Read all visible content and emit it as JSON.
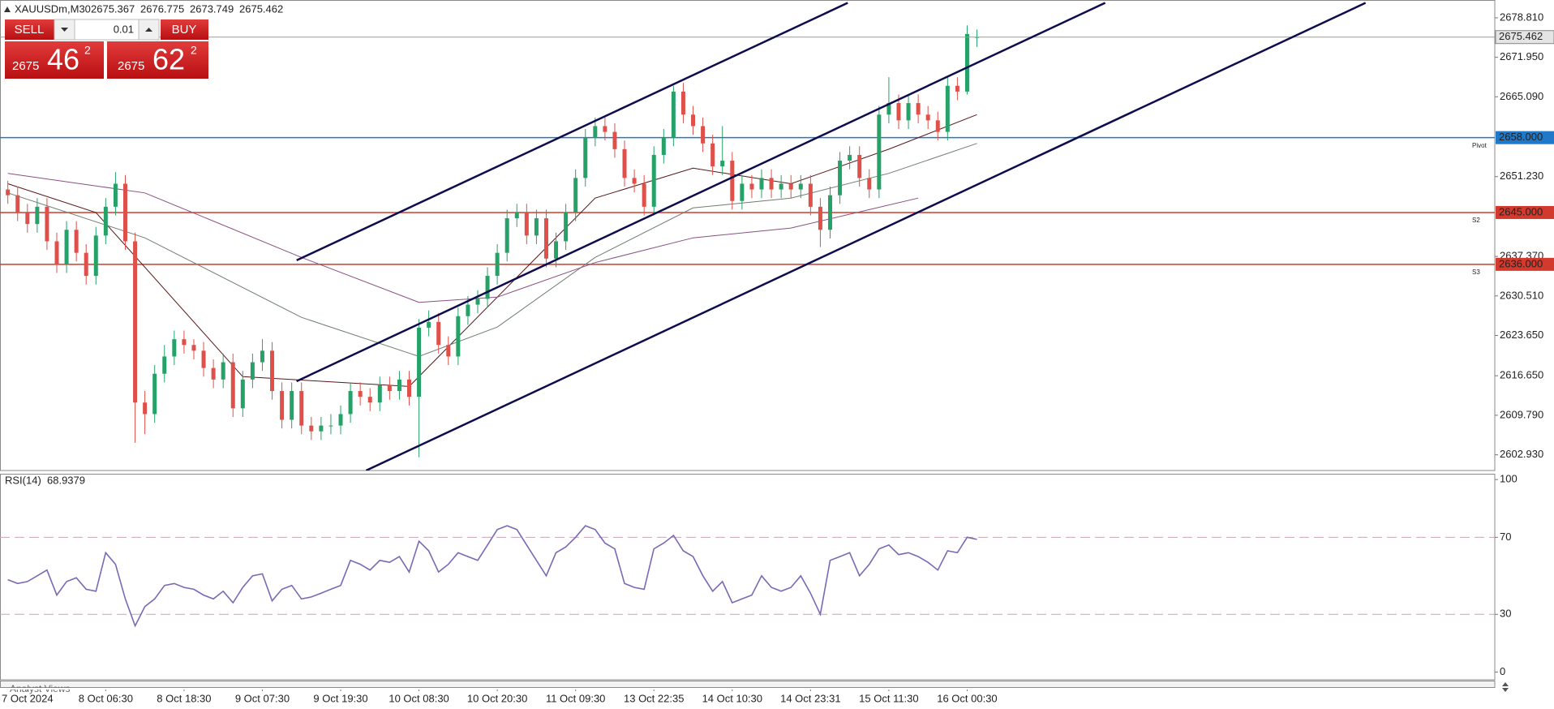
{
  "chart_data": [
    {
      "type": "candlestick",
      "title": "XAUUSDm,M30",
      "xlim": [
        -0.8,
        151.9
      ],
      "ylim": [
        2600.2,
        2681.9
      ],
      "xticks": [
        {
          "value": 2,
          "label": "7 Oct 2024"
        },
        {
          "value": 10,
          "label": "8 Oct 06:30"
        },
        {
          "value": 18,
          "label": "8 Oct 18:30"
        },
        {
          "value": 26,
          "label": "9 Oct 07:30"
        },
        {
          "value": 34,
          "label": "9 Oct 19:30"
        },
        {
          "value": 42,
          "label": "10 Oct 08:30"
        },
        {
          "value": 50,
          "label": "10 Oct 20:30"
        },
        {
          "value": 58,
          "label": "11 Oct 09:30"
        },
        {
          "value": 66,
          "label": "13 Oct 22:35"
        },
        {
          "value": 74,
          "label": "14 Oct 10:30"
        },
        {
          "value": 82,
          "label": "14 Oct 23:31"
        },
        {
          "value": 90,
          "label": "15 Oct 11:30"
        },
        {
          "value": 98,
          "label": "16 Oct 00:30"
        }
      ],
      "yticks": [
        {
          "value": 2602.93,
          "label": "2602.930"
        },
        {
          "value": 2609.79,
          "label": "2609.790"
        },
        {
          "value": 2616.65,
          "label": "2616.650"
        },
        {
          "value": 2623.65,
          "label": "2623.650"
        },
        {
          "value": 2630.51,
          "label": "2630.510"
        },
        {
          "value": 2637.37,
          "label": "2637.370"
        },
        {
          "value": 2651.23,
          "label": "2651.230"
        },
        {
          "value": 2665.09,
          "label": "2665.090"
        },
        {
          "value": 2671.95,
          "label": "2671.950"
        },
        {
          "value": 2678.81,
          "label": "2678.810"
        }
      ],
      "up_color": "#26a269",
      "down_color": "#e0504a",
      "open": [
        2649,
        2648,
        2645,
        2643,
        2646,
        2640,
        2636,
        2642,
        2638,
        2634,
        2641,
        2646,
        2650,
        2640,
        2612,
        2610,
        2617,
        2620,
        2623,
        2622,
        2621,
        2618,
        2616,
        2619,
        2611,
        2616,
        2619,
        2621,
        2614,
        2609,
        2614,
        2608,
        2607,
        2608,
        2608,
        2610,
        2614,
        2613,
        2612,
        2615,
        2614,
        2616,
        2613,
        2625,
        2626,
        2622,
        2620,
        2627,
        2629,
        2630,
        2634,
        2638,
        2644,
        2645,
        2641,
        2644,
        2637,
        2640,
        2645,
        2651,
        2658,
        2660,
        2659,
        2656,
        2651,
        2650,
        2646,
        2655,
        2658,
        2666,
        2662,
        2660,
        2657,
        2653,
        2654,
        2647,
        2650,
        2649,
        2651,
        2649,
        2650,
        2649,
        2650,
        2646,
        2642,
        2648,
        2654,
        2655,
        2651,
        2649,
        2662,
        2664,
        2661,
        2664,
        2662,
        2661,
        2659,
        2667,
        2666,
        2675.367
      ],
      "high": [
        2650.5,
        2649.5,
        2646.5,
        2647.5,
        2647.5,
        2641.5,
        2643.5,
        2643.5,
        2639.5,
        2642.5,
        2647.5,
        2652,
        2651.5,
        2641.5,
        2614,
        2618.5,
        2622,
        2624.5,
        2624.5,
        2623,
        2622.5,
        2619.5,
        2620.5,
        2620.5,
        2617.5,
        2620.5,
        2623,
        2622.5,
        2615.5,
        2615.5,
        2615.5,
        2609.5,
        2609.5,
        2610,
        2611.5,
        2615.5,
        2615.5,
        2614.5,
        2616.5,
        2616.5,
        2617.5,
        2617.5,
        2626.5,
        2628,
        2627.5,
        2623.5,
        2628.5,
        2630.5,
        2631.5,
        2635.5,
        2639.5,
        2645.5,
        2646.5,
        2646.5,
        2645.5,
        2645.5,
        2641.5,
        2646.5,
        2652.5,
        2659.5,
        2661.5,
        2661.5,
        2660.5,
        2657.5,
        2652.5,
        2651.5,
        2656.5,
        2659.5,
        2667,
        2667.5,
        2663.5,
        2661.5,
        2658.5,
        2660,
        2655.5,
        2651.5,
        2651.5,
        2652.5,
        2652.5,
        2651.5,
        2651.5,
        2651.5,
        2651.5,
        2647.5,
        2649.5,
        2655.5,
        2656.5,
        2656.5,
        2652.5,
        2663.5,
        2668.5,
        2665.5,
        2665.5,
        2665.5,
        2663.5,
        2662.5,
        2668.5,
        2668.5,
        2677.5,
        2676.775
      ],
      "low": [
        2646.5,
        2643.5,
        2641.5,
        2641.5,
        2638.5,
        2634.5,
        2634.5,
        2636.5,
        2632.5,
        2632.5,
        2639.5,
        2644.5,
        2638.5,
        2605,
        2606.5,
        2608.5,
        2615.5,
        2618.5,
        2620.5,
        2619.5,
        2616.5,
        2614.5,
        2614.5,
        2609.5,
        2609.5,
        2614.5,
        2617.5,
        2612.5,
        2607.5,
        2607.5,
        2606.5,
        2605.5,
        2605.5,
        2606.5,
        2606.5,
        2608.5,
        2611.5,
        2610.5,
        2610.5,
        2612.5,
        2612.5,
        2611.5,
        2602.5,
        2623.5,
        2620.5,
        2618.5,
        2618.5,
        2625.5,
        2627.5,
        2628.5,
        2632.5,
        2636.5,
        2642.5,
        2639.5,
        2639.5,
        2635.5,
        2635.5,
        2638.5,
        2643.5,
        2649.5,
        2656.5,
        2657.5,
        2654.5,
        2649.5,
        2648.5,
        2644.5,
        2644.5,
        2653.5,
        2656.5,
        2660.5,
        2658.5,
        2655.5,
        2651.5,
        2651.5,
        2645.5,
        2645.5,
        2647.5,
        2647.5,
        2647.5,
        2647.5,
        2647.5,
        2647.5,
        2644.5,
        2639,
        2640.5,
        2646.5,
        2652.5,
        2649.5,
        2647.5,
        2647.5,
        2660.5,
        2659.5,
        2659.5,
        2660.5,
        2659.5,
        2657.5,
        2657.5,
        2664.5,
        2665.5,
        2673.749
      ],
      "close": [
        2648,
        2645,
        2643,
        2646,
        2640,
        2636,
        2642,
        2638,
        2634,
        2641,
        2646,
        2650,
        2640,
        2612,
        2610,
        2617,
        2620,
        2623,
        2622,
        2621,
        2618,
        2616,
        2619,
        2611,
        2616,
        2619,
        2621,
        2614,
        2609,
        2614,
        2608,
        2607,
        2608,
        2608,
        2610,
        2614,
        2613,
        2612,
        2615,
        2614,
        2616,
        2613,
        2625,
        2626,
        2622,
        2620,
        2627,
        2629,
        2630,
        2634,
        2638,
        2644,
        2645,
        2641,
        2644,
        2637,
        2640,
        2645,
        2651,
        2658,
        2660,
        2659,
        2656,
        2651,
        2650,
        2646,
        2655,
        2658,
        2666,
        2662,
        2660,
        2657,
        2653,
        2654,
        2647,
        2650,
        2649,
        2651,
        2649,
        2650,
        2649,
        2650,
        2646,
        2642,
        2648,
        2654,
        2655,
        2651,
        2649,
        2662,
        2664,
        2661,
        2664,
        2662,
        2661,
        2659,
        2667,
        2666,
        2676,
        2675.462
      ],
      "current_color": "#9a9a9a",
      "moving_averages": [
        {
          "color": "#5a1616",
          "x": [
            0,
            9,
            24,
            41,
            50,
            60,
            70,
            80,
            90,
            99
          ],
          "values": [
            2650,
            2645,
            2616.5,
            2614.8,
            2630.3,
            2647.5,
            2652.7,
            2650,
            2656,
            2662
          ]
        },
        {
          "color": "#6f7d6f",
          "x": [
            0,
            14,
            30,
            42,
            50,
            60,
            70,
            80,
            90,
            99
          ],
          "values": [
            2648.4,
            2640.6,
            2626.8,
            2620,
            2625.1,
            2637.2,
            2645.8,
            2647.5,
            2651.8,
            2657
          ]
        },
        {
          "color": "#8a4f82",
          "x": [
            0,
            14,
            30,
            42,
            50,
            60,
            70,
            80,
            93
          ],
          "values": [
            2651.8,
            2648.4,
            2637.2,
            2629.4,
            2630.3,
            2636.3,
            2640.6,
            2642.3,
            2647.5
          ]
        }
      ],
      "trendline_color": "#0d0d4d",
      "trendlines": [
        {
          "x": [
            29.5,
            85.8
          ],
          "values": [
            2636.7,
            2681.4
          ]
        },
        {
          "x": [
            29.5,
            112.1
          ],
          "values": [
            2615.7,
            2681.4
          ]
        },
        {
          "x": [
            36.6,
            138.7
          ],
          "values": [
            2600.2,
            2681.4
          ]
        }
      ],
      "levels": [
        {
          "value": 2658,
          "label": "2658.000",
          "tag": "Pivot",
          "color": "#1f78c8"
        },
        {
          "value": 2645,
          "label": "2645.000",
          "tag": "S2",
          "color": "#d23a2e"
        },
        {
          "value": 2636,
          "label": "2636.000",
          "tag": "S3",
          "color": "#d23a2e"
        }
      ]
    },
    {
      "type": "line",
      "title": "RSI(14)",
      "color": "#7b68b5",
      "level_color": "#c9a3b8",
      "xlim": [
        -0.8,
        151.9
      ],
      "ylim": [
        -4,
        103
      ],
      "yticks": [
        0,
        30,
        70,
        100
      ],
      "levels": [
        30,
        70
      ],
      "values": [
        48,
        46,
        47,
        50,
        53,
        40,
        47,
        49,
        43,
        42,
        62,
        56,
        38,
        24,
        34,
        38,
        45,
        46,
        44,
        43,
        40,
        38,
        42,
        36,
        44,
        50,
        51,
        37,
        43,
        45,
        38,
        39,
        41,
        43,
        45,
        58,
        56,
        53,
        58,
        57,
        60,
        52,
        68,
        63,
        52,
        56,
        62,
        60,
        58,
        66,
        74,
        76,
        74,
        66,
        58,
        50,
        62,
        65,
        70,
        76,
        74,
        67,
        64,
        46,
        44,
        43,
        64,
        67,
        71,
        63,
        60,
        50,
        42,
        47,
        36,
        38,
        40,
        50,
        44,
        42,
        44,
        50,
        41,
        30,
        58,
        60,
        62,
        50,
        56,
        64,
        66,
        61,
        62,
        60,
        57,
        53,
        63,
        62,
        70,
        68.9379
      ]
    }
  ],
  "trade_panel": {
    "sell": "SELL",
    "buy": "BUY",
    "lot": "0.01",
    "sell_price": {
      "big": "2675",
      "pips": "46",
      "point": "2"
    },
    "buy_price": {
      "big": "2675",
      "pips": "62",
      "point": "2"
    }
  },
  "tab": "Analyst Views"
}
